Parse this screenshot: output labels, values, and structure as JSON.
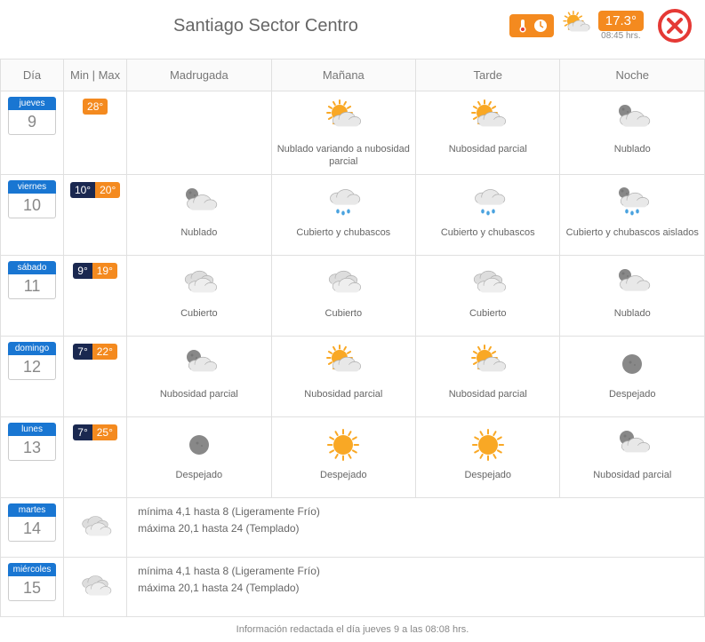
{
  "header": {
    "title": "Santiago Sector Centro",
    "current_temp": "17.3°",
    "time": "08:45 hrs.",
    "badge_color": "#f48a1f",
    "close_color": "#e53935"
  },
  "columns": [
    "Día",
    "Min | Max",
    "Madrugada",
    "Mañana",
    "Tarde",
    "Noche"
  ],
  "days": [
    {
      "name": "jueves",
      "num": "9",
      "min": null,
      "max": "28°",
      "periods": [
        {
          "icon": null,
          "desc": ""
        },
        {
          "icon": "partly-cloudy-day",
          "desc": "Nublado variando a nubosidad parcial"
        },
        {
          "icon": "partly-cloudy-day",
          "desc": "Nubosidad parcial"
        },
        {
          "icon": "cloudy-night",
          "desc": "Nublado"
        }
      ]
    },
    {
      "name": "viernes",
      "num": "10",
      "min": "10°",
      "max": "20°",
      "periods": [
        {
          "icon": "cloudy-night",
          "desc": "Nublado"
        },
        {
          "icon": "rain",
          "desc": "Cubierto y chubascos"
        },
        {
          "icon": "rain",
          "desc": "Cubierto y chubascos"
        },
        {
          "icon": "rain-night",
          "desc": "Cubierto y chubascos aislados"
        }
      ]
    },
    {
      "name": "sábado",
      "num": "11",
      "min": "9°",
      "max": "19°",
      "periods": [
        {
          "icon": "overcast",
          "desc": "Cubierto"
        },
        {
          "icon": "overcast",
          "desc": "Cubierto"
        },
        {
          "icon": "overcast",
          "desc": "Cubierto"
        },
        {
          "icon": "cloudy-night",
          "desc": "Nublado"
        }
      ]
    },
    {
      "name": "domingo",
      "num": "12",
      "min": "7°",
      "max": "22°",
      "periods": [
        {
          "icon": "partly-cloudy-night",
          "desc": "Nubosidad parcial"
        },
        {
          "icon": "partly-cloudy-day",
          "desc": "Nubosidad parcial"
        },
        {
          "icon": "partly-cloudy-day",
          "desc": "Nubosidad parcial"
        },
        {
          "icon": "clear-night",
          "desc": "Despejado"
        }
      ]
    },
    {
      "name": "lunes",
      "num": "13",
      "min": "7°",
      "max": "25°",
      "periods": [
        {
          "icon": "clear-night",
          "desc": "Despejado"
        },
        {
          "icon": "sunny",
          "desc": "Despejado"
        },
        {
          "icon": "sunny",
          "desc": "Despejado"
        },
        {
          "icon": "partly-cloudy-night",
          "desc": "Nubosidad parcial"
        }
      ]
    }
  ],
  "summary_days": [
    {
      "name": "martes",
      "num": "14",
      "icon": "overcast",
      "line1": "mínima 4,1 hasta 8 (Ligeramente Frío)",
      "line2": "máxima 20,1 hasta 24 (Templado)"
    },
    {
      "name": "miércoles",
      "num": "15",
      "icon": "overcast",
      "line1": "mínima 4,1 hasta 8 (Ligeramente Frío)",
      "line2": "máxima 20,1 hasta 24 (Templado)"
    }
  ],
  "footer": "Información redactada el día jueves 9 a las 08:08 hrs.",
  "colors": {
    "day_badge_bg": "#1976d2",
    "min_bg": "#1a2850",
    "max_bg": "#f48a1f",
    "border": "#e0e0e0",
    "sun": "#f9a825",
    "cloud": "#d0d0d0",
    "cloud_dark": "#b0b0b0",
    "moon": "#888888",
    "rain_drop": "#4aa3df"
  }
}
